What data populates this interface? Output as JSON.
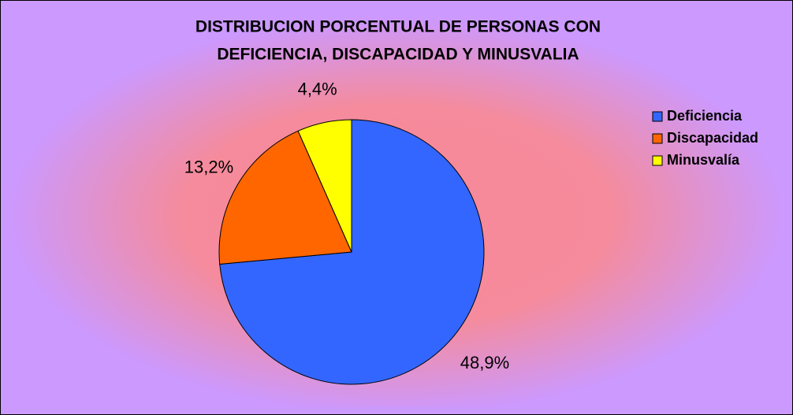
{
  "chart_data": {
    "type": "pie",
    "title": [
      "DISTRIBUCION PORCENTUAL DE PERSONAS CON",
      "DEFICIENCIA, DISCAPACIDAD Y MINUSVALIA"
    ],
    "categories": [
      "Deficiencia",
      "Discapacidad",
      "Minusvalía"
    ],
    "values": [
      48.9,
      13.2,
      4.4
    ],
    "value_labels": [
      "48,9%",
      "13,2%",
      "4,4%"
    ],
    "colors": [
      "#3366ff",
      "#ff6600",
      "#ffff00"
    ],
    "legend": "right"
  }
}
